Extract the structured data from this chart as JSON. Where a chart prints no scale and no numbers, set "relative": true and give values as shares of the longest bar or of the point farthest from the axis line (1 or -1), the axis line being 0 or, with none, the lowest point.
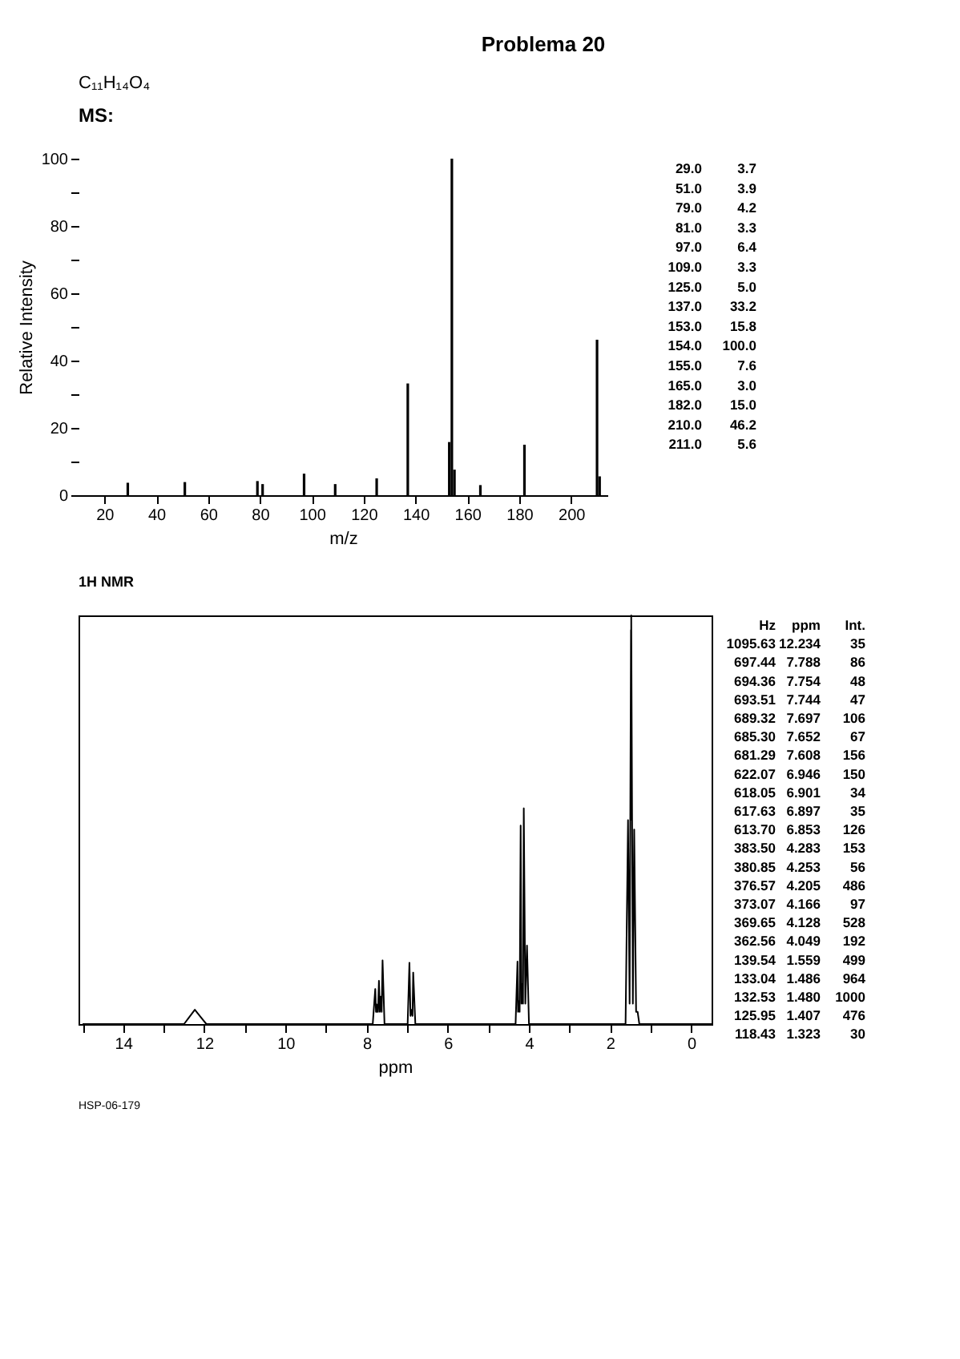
{
  "chart_data": [
    {
      "type": "bar",
      "title": "Problema 20",
      "subtitle": "C₁₁H₁₄O₄",
      "xlabel": "m/z",
      "ylabel": "Relative Intensity",
      "annotations": [
        "MS:",
        "29.0 3.7",
        "51.0 3.9",
        "79.0 4.2",
        "81.0 3.3",
        "97.0 6.4",
        "109.0 3.3",
        "125.0 5.0",
        "137.0 33.2",
        "153.0 15.8",
        "154.0 100.0",
        "155.0 7.6",
        "165.0 3.0",
        "182.0 15.0",
        "210.0 46.2",
        "211.0 5.6"
      ],
      "x": [
        29,
        51,
        79,
        81,
        97,
        109,
        125,
        137,
        153,
        154,
        155,
        165,
        182,
        210,
        211
      ],
      "values": [
        3.7,
        3.9,
        4.2,
        3.3,
        6.4,
        3.3,
        5.0,
        33.2,
        15.8,
        100.0,
        7.6,
        3.0,
        15.0,
        46.2,
        5.6
      ],
      "color": "#000000",
      "xlim": [
        10,
        214
      ],
      "xticks": [
        20,
        40,
        60,
        80,
        100,
        120,
        140,
        160,
        180,
        200
      ],
      "ylim": [
        0,
        100
      ],
      "yticks": [
        0,
        {
          "value": 10,
          "label": null
        },
        20,
        {
          "value": 30,
          "label": null
        },
        40,
        {
          "value": 50,
          "label": null
        },
        60,
        {
          "value": 70,
          "label": null
        },
        80,
        {
          "value": 90,
          "label": null
        },
        100
      ],
      "grid": false
    },
    {
      "type": "line",
      "title": "1H NMR",
      "xlabel": "ppm",
      "relative": true,
      "annotations": [
        "HSP-06-179",
        "Hz ppm Int.",
        "1095.63 12.234 35",
        "697.44 7.788 86",
        "694.36 7.754 48",
        "693.51 7.744 47",
        "689.32 7.697 106",
        "685.30 7.652 67",
        "681.29 7.608 156",
        "622.07 6.946 150",
        "618.05 6.901 34",
        "617.63 6.897 35",
        "613.70 6.853 126",
        "383.50 4.283 153",
        "380.85 4.253 56",
        "376.57 4.205 486",
        "373.07 4.166 97",
        "369.65 4.128 528",
        "362.56 4.049 192",
        "139.54 1.559 499",
        "133.04 1.486 964",
        "132.53 1.480 1000",
        "125.95 1.407 476",
        "118.43 1.323 30"
      ],
      "x": [
        15.0,
        12.5,
        12.234,
        11.95,
        7.85,
        7.788,
        7.77,
        7.754,
        7.749,
        7.744,
        7.72,
        7.697,
        7.675,
        7.652,
        7.63,
        7.608,
        7.56,
        6.99,
        6.946,
        6.92,
        6.901,
        6.899,
        6.897,
        6.87,
        6.853,
        6.8,
        4.33,
        4.283,
        4.27,
        4.253,
        4.23,
        4.205,
        4.185,
        4.166,
        4.147,
        4.128,
        4.09,
        4.049,
        4.0,
        1.62,
        1.559,
        1.52,
        1.486,
        1.483,
        1.48,
        1.44,
        1.407,
        1.36,
        1.323,
        1.28,
        -0.5
      ],
      "values": [
        0,
        0,
        0.035,
        0,
        0,
        0.086,
        0.03,
        0.048,
        0.03,
        0.047,
        0.03,
        0.106,
        0.03,
        0.067,
        0.03,
        0.156,
        0,
        0,
        0.15,
        0.02,
        0.034,
        0.03,
        0.035,
        0.02,
        0.126,
        0,
        0,
        0.153,
        0.03,
        0.056,
        0.03,
        0.486,
        0.05,
        0.097,
        0.05,
        0.528,
        0.05,
        0.192,
        0,
        0,
        0.499,
        0.05,
        0.964,
        0.5,
        1.0,
        0.05,
        0.476,
        0.03,
        0.03,
        0,
        0
      ],
      "color": "#000000",
      "xlim": [
        15.1,
        -0.5
      ],
      "xticks": [
        {
          "value": 15,
          "label": null
        },
        14,
        {
          "value": 13,
          "label": null
        },
        12,
        {
          "value": 11,
          "label": null
        },
        10,
        {
          "value": 9,
          "label": null
        },
        8,
        {
          "value": 7,
          "label": null
        },
        6,
        {
          "value": 5,
          "label": null
        },
        4,
        {
          "value": 3,
          "label": null
        },
        2,
        {
          "value": 1,
          "label": null
        },
        0
      ],
      "tick_labels": "x",
      "grid": false
    }
  ]
}
